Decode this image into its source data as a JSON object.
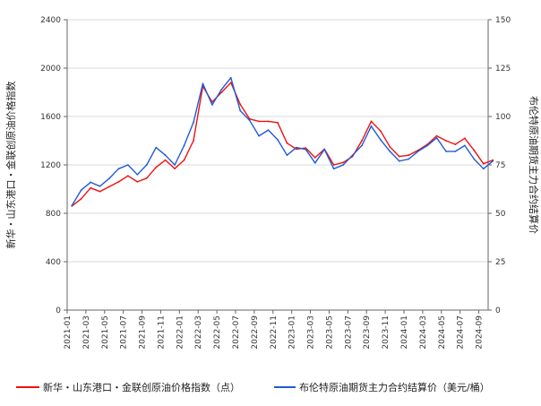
{
  "chart_data": {
    "type": "line",
    "title": "",
    "grid": true,
    "legend_position": "bottom",
    "x_tick_labels": [
      "2021-01",
      "2021-03",
      "2021-05",
      "2021-07",
      "2021-09",
      "2021-11",
      "2022-01",
      "2022-03",
      "2022-05",
      "2022-07",
      "2022-09",
      "2022-11",
      "2023-01",
      "2023-03",
      "2023-05",
      "2023-07",
      "2023-09",
      "2023-11",
      "2024-01",
      "2024-03",
      "2024-05",
      "2024-07",
      "2024-09"
    ],
    "y_left": {
      "label": "新华・山东港口・金联创原油价格指数",
      "range": [
        0,
        2400
      ],
      "ticks": [
        "0",
        "400",
        "800",
        "1200",
        "1600",
        "2000",
        "2400"
      ]
    },
    "y_right": {
      "label": "布伦特原油期货主力合约结算价",
      "range": [
        0,
        150
      ],
      "ticks": [
        "0",
        "25",
        "50",
        "75",
        "100",
        "125",
        "150"
      ]
    },
    "series": [
      {
        "name": "新华・山东港口・金联创原油价格指数（点）",
        "axis": "left",
        "color": "#ee1111",
        "x": [
          "2021-01",
          "2021-02",
          "2021-03",
          "2021-04",
          "2021-05",
          "2021-06",
          "2021-07",
          "2021-08",
          "2021-09",
          "2021-10",
          "2021-11",
          "2021-12",
          "2022-01",
          "2022-02",
          "2022-03",
          "2022-04",
          "2022-05",
          "2022-06",
          "2022-07",
          "2022-08",
          "2022-09",
          "2022-10",
          "2022-11",
          "2022-12",
          "2023-01",
          "2023-02",
          "2023-03",
          "2023-04",
          "2023-05",
          "2023-06",
          "2023-07",
          "2023-08",
          "2023-09",
          "2023-10",
          "2023-11",
          "2023-12",
          "2024-01",
          "2024-02",
          "2024-03",
          "2024-04",
          "2024-05",
          "2024-06",
          "2024-07",
          "2024-08",
          "2024-09",
          "2024-10"
        ],
        "values": [
          860,
          920,
          1010,
          980,
          1020,
          1060,
          1110,
          1060,
          1090,
          1180,
          1240,
          1170,
          1240,
          1400,
          1850,
          1720,
          1800,
          1880,
          1700,
          1580,
          1560,
          1560,
          1550,
          1380,
          1330,
          1340,
          1260,
          1330,
          1200,
          1220,
          1270,
          1400,
          1560,
          1480,
          1350,
          1270,
          1280,
          1320,
          1370,
          1440,
          1400,
          1370,
          1420,
          1320,
          1210,
          1240
        ]
      },
      {
        "name": "布伦特原油期货主力合约结算价（美元/桶）",
        "axis": "right",
        "color": "#1f5bd6",
        "x": [
          "2021-01",
          "2021-02",
          "2021-03",
          "2021-04",
          "2021-05",
          "2021-06",
          "2021-07",
          "2021-08",
          "2021-09",
          "2021-10",
          "2021-11",
          "2021-12",
          "2022-01",
          "2022-02",
          "2022-03",
          "2022-04",
          "2022-05",
          "2022-06",
          "2022-07",
          "2022-08",
          "2022-09",
          "2022-10",
          "2022-11",
          "2022-12",
          "2023-01",
          "2023-02",
          "2023-03",
          "2023-04",
          "2023-05",
          "2023-06",
          "2023-07",
          "2023-08",
          "2023-09",
          "2023-10",
          "2023-11",
          "2023-12",
          "2024-01",
          "2024-02",
          "2024-03",
          "2024-04",
          "2024-05",
          "2024-06",
          "2024-07",
          "2024-08",
          "2024-09",
          "2024-10"
        ],
        "values": [
          54,
          62,
          66,
          64,
          68,
          73,
          75,
          70,
          75,
          84,
          80,
          75,
          85,
          97,
          117,
          106,
          114,
          120,
          103,
          98,
          90,
          93,
          88,
          80,
          84,
          83,
          76,
          83,
          73,
          75,
          80,
          85,
          95,
          88,
          82,
          77,
          78,
          82,
          85,
          89,
          82,
          82,
          85,
          78,
          73,
          77
        ]
      }
    ]
  }
}
